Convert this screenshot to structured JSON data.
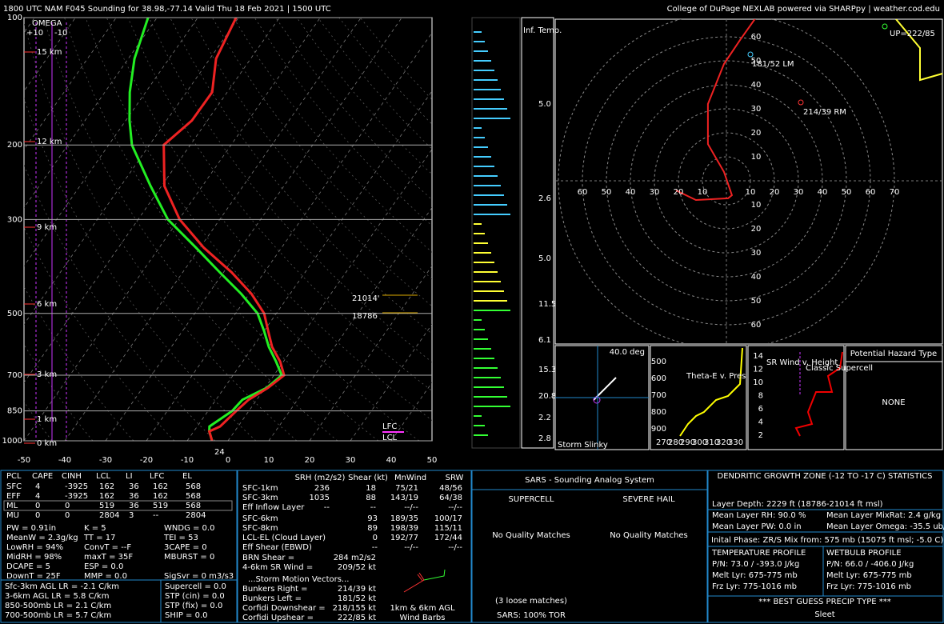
{
  "header": {
    "left": "1800 UTC NAM F045 Sounding for 38.98,-77.14 Valid  Thu 18 Feb 2021 | 1500 UTC",
    "right": "College of DuPage NEXLAB powered via SHARPpy | weather.cod.edu"
  },
  "skewt": {
    "pressure_ticks": [
      100,
      200,
      300,
      500,
      700,
      850,
      1000
    ],
    "temp_ticks": [
      -50,
      -40,
      -30,
      -20,
      -10,
      0,
      10,
      20,
      30,
      40,
      50
    ],
    "height_labels": [
      "15 km",
      "12 km",
      "9 km",
      "6 km",
      "3 km",
      "1 km",
      "0 km"
    ],
    "omega": "OMEGA",
    "omega_ticks": [
      "+10",
      "-10"
    ],
    "annotations": {
      "dgz_top": "21014'",
      "dgz_bottom": "18786",
      "lfc": "LFC",
      "lcl": "LCL",
      "sfc_temp": "24"
    },
    "pressure": [
      1000,
      950,
      925,
      850,
      800,
      750,
      700,
      650,
      600,
      550,
      500,
      450,
      400,
      350,
      300,
      250,
      200,
      175,
      150,
      125,
      100
    ],
    "temperature": [
      -3.9,
      -6.2,
      -4.4,
      -3.1,
      -2.0,
      0.7,
      2.5,
      -0.8,
      -5.3,
      -9,
      -13,
      -19.4,
      -28,
      -39,
      -49.8,
      -59.3,
      -66.5,
      -63.8,
      -63.7,
      -68.5,
      -70.6
    ],
    "dewpoint": [
      -3.9,
      -6.2,
      -7,
      -4.1,
      -3.5,
      0.4,
      1.9,
      -1.8,
      -6.1,
      -10,
      -14.6,
      -21.9,
      -30.9,
      -40.9,
      -52.7,
      -62.7,
      -74.3,
      -79.1,
      -83.9,
      -88.5,
      -92.2
    ]
  },
  "inferred_temp": {
    "title": "Inf. Temp.",
    "labels": [
      "5.0",
      "2.6",
      "5.0",
      "11.5",
      "6.1",
      "15.3",
      "20.8",
      "2.2",
      "2.8"
    ]
  },
  "hodograph": {
    "rings": [
      10,
      20,
      30,
      40,
      50,
      60,
      70
    ],
    "upshear": "UP=222/85",
    "left_mover": "181/52 LM",
    "right_mover": "214/39 RM",
    "u": [
      -21,
      -12.7,
      0.7,
      2.3,
      -1,
      -7.7,
      -7.7,
      -1,
      5.7,
      12.3
    ],
    "v": [
      -4,
      -8,
      -7.3,
      -6,
      3.7,
      15.3,
      32,
      48.7,
      58.7,
      68
    ]
  },
  "slinky": {
    "angle": "40.0 deg",
    "title": "Storm Slinky"
  },
  "theta_e": {
    "title": "Theta-E v. Pres",
    "yticks": [
      500,
      600,
      700,
      800,
      900
    ],
    "xticks": [
      270,
      280,
      290,
      300,
      310,
      320,
      330
    ]
  },
  "sr_wind": {
    "title": "SR Wind v. Height",
    "label": "Classic Supercell",
    "yticks": [
      2,
      4,
      6,
      8,
      10,
      12,
      14
    ]
  },
  "hazard": {
    "title": "Potential Hazard Type",
    "value": "NONE"
  },
  "thermo": {
    "headers": [
      "PCL",
      "CAPE",
      "CINH",
      "LCL",
      "LI",
      "LFC",
      "EL"
    ],
    "rows": [
      [
        "SFC",
        "4",
        "-3925",
        "162",
        "36",
        "162",
        "568"
      ],
      [
        "EFF",
        "4",
        "-3925",
        "162",
        "36",
        "162",
        "568"
      ],
      [
        "ML",
        "0",
        "0",
        "519",
        "36",
        "519",
        "568"
      ],
      [
        "MU",
        "0",
        "0",
        "2804",
        "3",
        "--",
        "2804"
      ]
    ],
    "col1": [
      "PW = 0.91in",
      "MeanW = 2.3g/kg",
      "LowRH = 94%",
      "MidRH = 98%",
      "DCAPE = 5",
      "DownT = 25F"
    ],
    "col2": [
      "K = 5",
      "TT = 17",
      "ConvT = --F",
      "maxT = 35F",
      "ESP = 0.0",
      "MMP = 0.0"
    ],
    "col3": [
      "WNDG = 0.0",
      "TEI = 53",
      "3CAPE = 0",
      "MBURST = 0"
    ],
    "sigsvr": "SigSvr = 0 m3/s3",
    "lapse": [
      "Sfc-3km AGL LR = -2.1 C/km",
      "3-6km AGL LR = 5.8 C/km",
      "850-500mb LR = 2.1 C/km",
      "700-500mb LR = 5.7 C/km"
    ],
    "composite": [
      "Supercell = 0.0",
      "STP (cin) = 0.0",
      "STP (fix) = 0.0",
      "SHIP = 0.0"
    ]
  },
  "kinematics": {
    "headers": [
      "SRH (m2/s2)",
      "Shear (kt)",
      "MnWind",
      "SRW"
    ],
    "rows": [
      [
        "SFC-1km",
        "236",
        "18",
        "75/21",
        "48/56"
      ],
      [
        "SFC-3km",
        "1035",
        "88",
        "143/19",
        "64/38"
      ],
      [
        "Eff Inflow Layer",
        "--",
        "--",
        "--/--",
        "--/--"
      ]
    ],
    "rows2": [
      [
        "SFC-6km",
        "93",
        "189/35",
        "100/17"
      ],
      [
        "SFC-8km",
        "89",
        "198/39",
        "115/11"
      ],
      [
        "LCL-EL (Cloud Layer)",
        "0",
        "192/77",
        "172/44"
      ],
      [
        "Eff Shear (EBWD)",
        "--",
        "--/--",
        "--/--"
      ]
    ],
    "brn": [
      "BRN Shear =",
      "284 m2/s2"
    ],
    "sr46": [
      "4-6km SR Wind =",
      "209/52 kt"
    ],
    "storm_title": "...Storm Motion Vectors...",
    "motions": [
      [
        "Bunkers Right =",
        "214/39 kt"
      ],
      [
        "Bunkers Left =",
        "181/52 kt"
      ],
      [
        "Corfidi Downshear =",
        "218/155 kt"
      ],
      [
        "Corfidi Upshear =",
        "222/85 kt"
      ]
    ],
    "barbs": [
      "1km & 6km AGL",
      "Wind Barbs"
    ]
  },
  "sars": {
    "title": "SARS - Sounding Analog System",
    "supercell": "SUPERCELL",
    "hail": "SEVERE HAIL",
    "match1": "No Quality Matches",
    "match2": "No Quality Matches",
    "loose": "(3 loose matches)",
    "tor": "SARS: 100% TOR"
  },
  "dgz": {
    "title": "DENDRITIC GROWTH ZONE (-12 TO -17 C) STATISTICS",
    "depth": "Layer Depth: 2229 ft (18786-21014 ft msl)",
    "rh": "Mean Layer RH: 90.0 %",
    "mixrat": "Mean Layer MixRat: 2.4 g/kg",
    "pw": "Mean Layer PW: 0.0 in",
    "omega": "Mean Layer Omega: -35.5 ub/s",
    "phase": "Inital Phase: ZR/S Mix from: 575 mb (15075 ft msl; -5.0 C)",
    "temp_title": "TEMPERATURE PROFILE",
    "wb_title": "WETBULB PROFILE",
    "temp": [
      "P/N: 73.0 / -393.0 J/kg",
      "Melt Lyr: 675-775 mb",
      "Frz Lyr: 775-1016 mb"
    ],
    "wb": [
      "P/N: 66.0 / -406.0 J/kg",
      "Melt Lyr: 675-775 mb",
      "Frz Lyr: 775-1016 mb"
    ],
    "guess_title": "*** BEST GUESS PRECIP TYPE ***",
    "guess": "Sleet"
  }
}
